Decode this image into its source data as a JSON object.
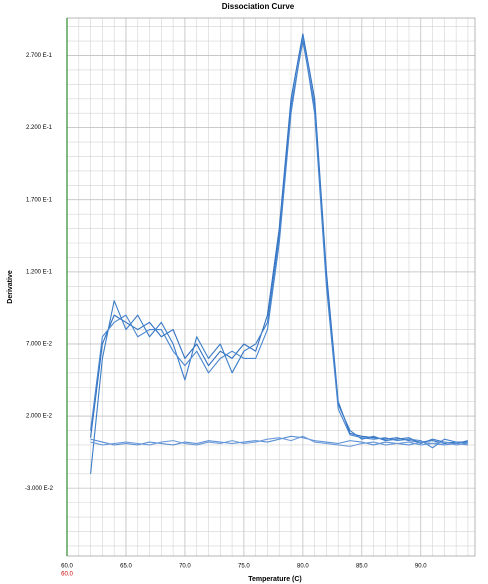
{
  "chart_data": {
    "type": "line",
    "title": "Dissociation Curve",
    "x_label": "Temperature (C)",
    "y_label": "Derivative",
    "annotation": "60.0",
    "annotation_color": "#d00000",
    "axis_color": "#2e8b2e",
    "grid": true,
    "minor_grid_step": [
      1,
      0.01
    ],
    "xlim": [
      60,
      94.6
    ],
    "ylim": [
      -0.077,
      0.296
    ],
    "xticks": [
      {
        "value": 60,
        "label": "60.0"
      },
      {
        "value": 65,
        "label": "65.0"
      },
      {
        "value": 70,
        "label": "70.0"
      },
      {
        "value": 75,
        "label": "75.0"
      },
      {
        "value": 80,
        "label": "80.0"
      },
      {
        "value": 85,
        "label": "85.0"
      },
      {
        "value": 90,
        "label": "90.0"
      }
    ],
    "yticks": [
      {
        "value": -0.03,
        "label": "-3.000 E-2"
      },
      {
        "value": 0.02,
        "label": "2.000 E-2"
      },
      {
        "value": 0.07,
        "label": "7.000 E-2"
      },
      {
        "value": 0.12,
        "label": "1.200 E-1"
      },
      {
        "value": 0.17,
        "label": "1.700 E-1"
      },
      {
        "value": 0.22,
        "label": "2.200 E-1"
      },
      {
        "value": 0.27,
        "label": "2.700 E-1"
      }
    ],
    "x": [
      62,
      63,
      64,
      65,
      66,
      67,
      68,
      69,
      70,
      71,
      72,
      73,
      74,
      75,
      76,
      77,
      78,
      79,
      80,
      81,
      82,
      83,
      84,
      85,
      86,
      87,
      88,
      89,
      90,
      91,
      92,
      93,
      94
    ],
    "series": [
      {
        "color": "#2f6fc0",
        "values": [
          0.005,
          0.07,
          0.09,
          0.085,
          0.08,
          0.085,
          0.075,
          0.08,
          0.06,
          0.07,
          0.055,
          0.065,
          0.06,
          0.07,
          0.065,
          0.09,
          0.15,
          0.24,
          0.285,
          0.24,
          0.12,
          0.03,
          0.008,
          0.006,
          0.005,
          0.004,
          0.005,
          0.003,
          0.002,
          0.003,
          0.001,
          0.002,
          0.002
        ]
      },
      {
        "color": "#3a7cc8",
        "values": [
          -0.02,
          0.06,
          0.1,
          0.08,
          0.09,
          0.075,
          0.085,
          0.07,
          0.045,
          0.075,
          0.06,
          0.07,
          0.05,
          0.065,
          0.07,
          0.085,
          0.145,
          0.235,
          0.28,
          0.235,
          0.115,
          0.028,
          0.01,
          0.004,
          0.006,
          0.003,
          0.004,
          0.005,
          0.001,
          0.004,
          0.002,
          0.001,
          0.003
        ]
      },
      {
        "color": "#4a86cf",
        "values": [
          0.01,
          0.075,
          0.085,
          0.09,
          0.075,
          0.08,
          0.08,
          0.065,
          0.055,
          0.065,
          0.05,
          0.06,
          0.065,
          0.06,
          0.06,
          0.08,
          0.14,
          0.23,
          0.283,
          0.23,
          0.11,
          0.025,
          0.007,
          0.005,
          0.004,
          0.005,
          0.003,
          0.004,
          0.003,
          -0.002,
          0.004,
          0.002,
          0.001
        ]
      },
      {
        "color": "#5b8fd6",
        "values": [
          0.004,
          0.002,
          0.0,
          0.001,
          0.0,
          0.002,
          0.001,
          0.0,
          0.002,
          0.001,
          0.003,
          0.002,
          0.001,
          0.002,
          0.003,
          0.002,
          0.004,
          0.006,
          0.005,
          0.003,
          0.002,
          0.001,
          0.003,
          0.002,
          0.0,
          0.002,
          0.001,
          0.0,
          0.002,
          0.001,
          0.0,
          0.001,
          0.0
        ]
      },
      {
        "color": "#6a9ad9",
        "values": [
          0.002,
          0.0,
          0.001,
          0.002,
          0.001,
          0.0,
          0.002,
          0.003,
          0.001,
          0.0,
          0.002,
          0.001,
          0.003,
          0.001,
          0.002,
          0.004,
          0.005,
          0.003,
          0.006,
          0.002,
          0.001,
          0.0,
          -0.001,
          0.001,
          0.002,
          0.0,
          0.001,
          0.002,
          0.0,
          0.001,
          0.002,
          0.0,
          0.001
        ]
      }
    ]
  }
}
